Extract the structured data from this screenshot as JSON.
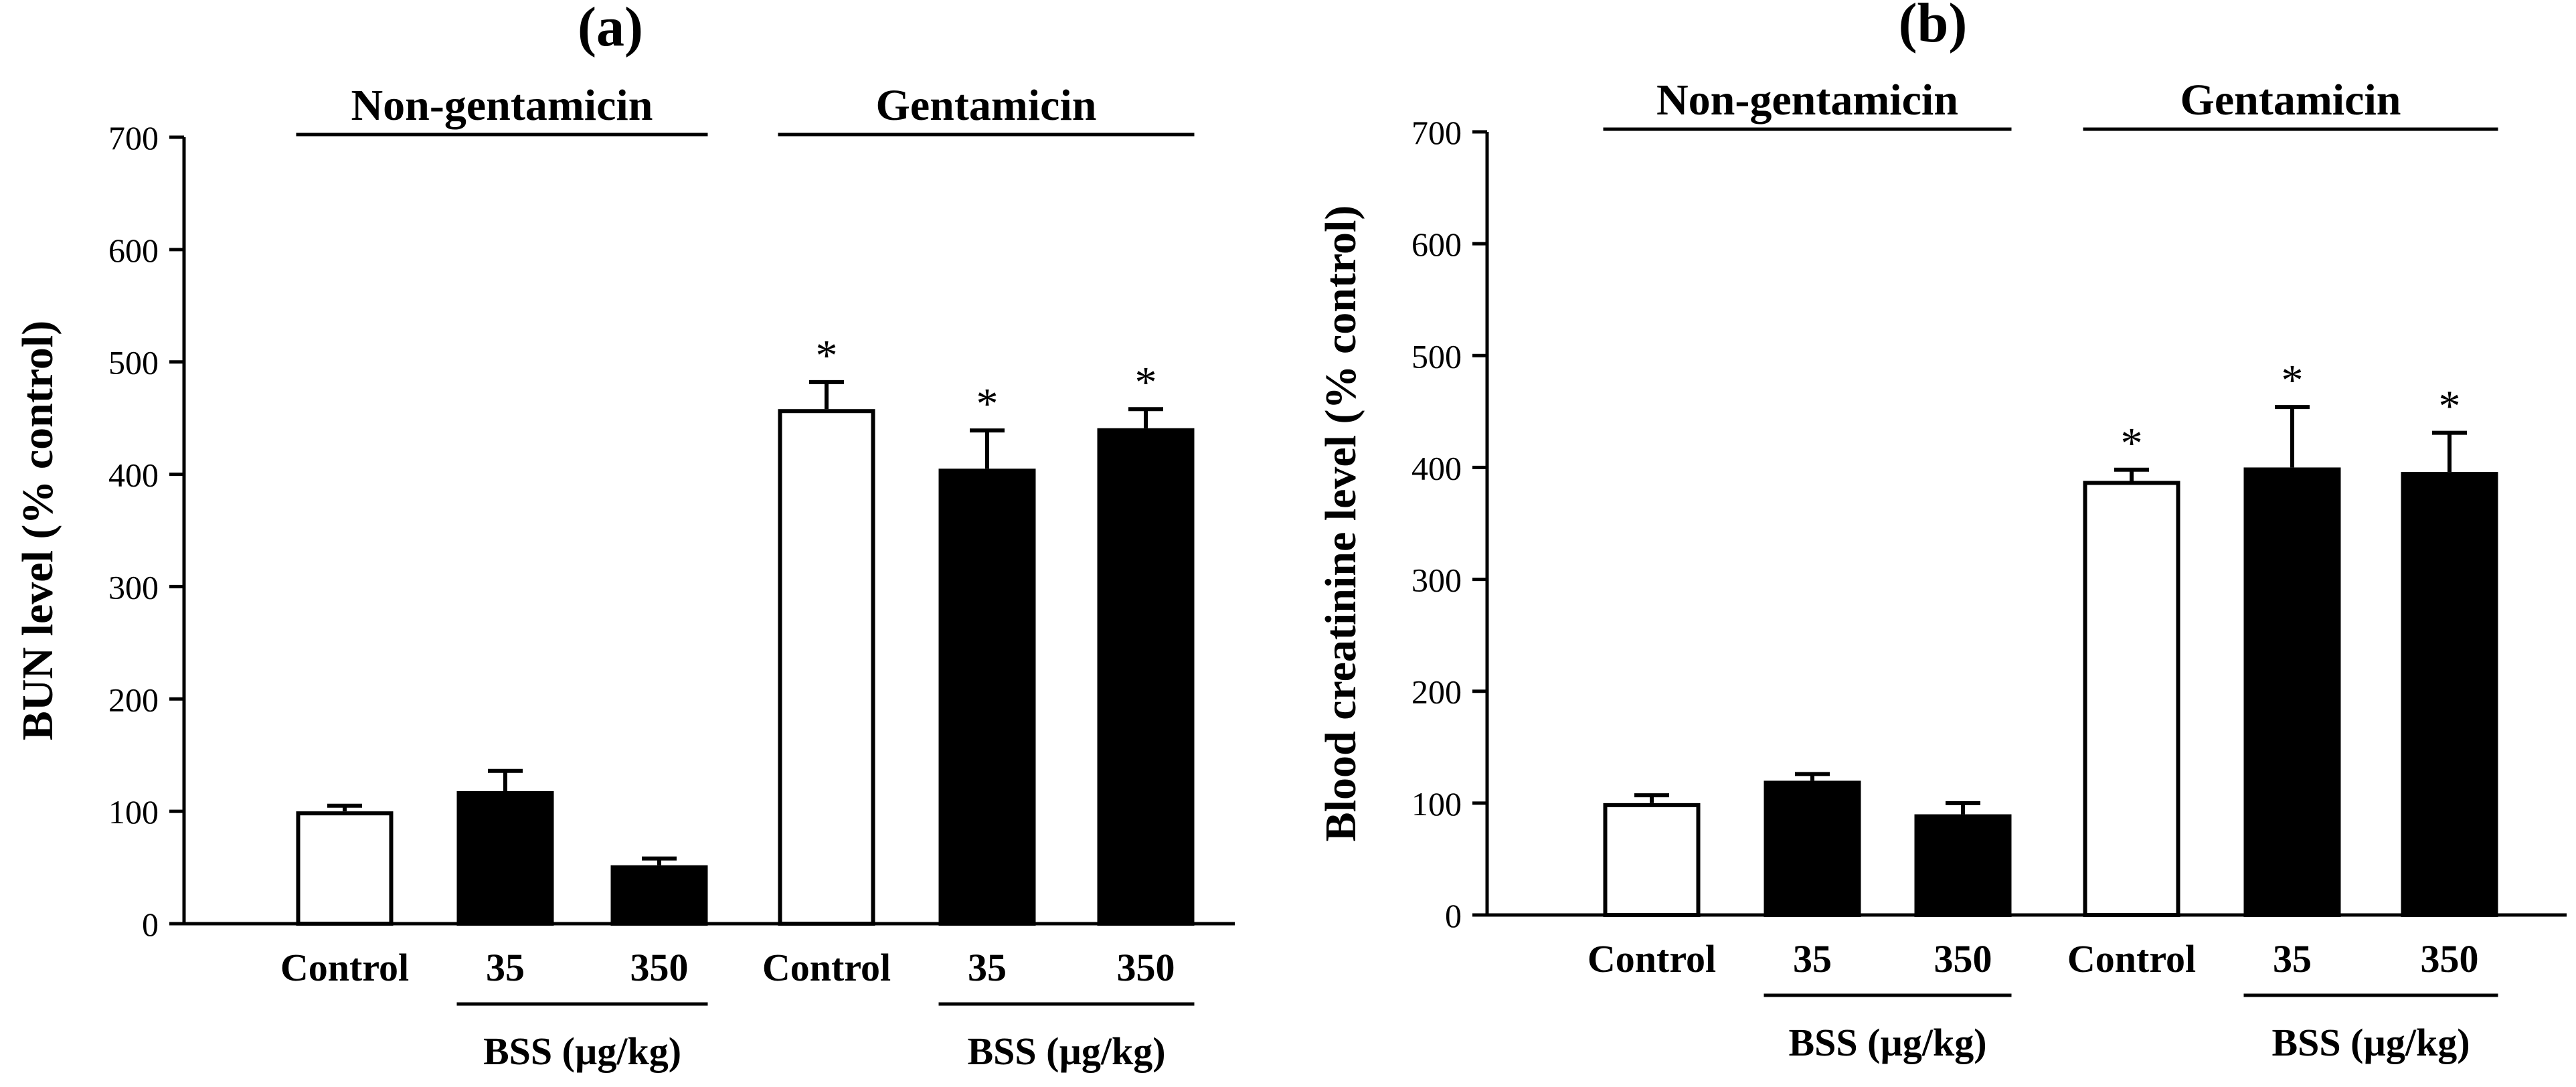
{
  "figure": {
    "panels": [
      "a",
      "b"
    ]
  },
  "chart_data": [
    {
      "type": "bar",
      "panel_label": "(a)",
      "ylabel": "BUN level (% control)",
      "ylim": [
        0,
        700
      ],
      "yticks": [
        "0",
        "100",
        "200",
        "300",
        "400",
        "500",
        "600",
        "700"
      ],
      "categories": [
        "Control",
        "35",
        "350",
        "Control",
        "35",
        "350"
      ],
      "values": [
        100,
        118,
        52,
        458,
        405,
        441
      ],
      "errors": [
        5,
        18,
        6,
        24,
        34,
        17
      ],
      "fills": [
        "open",
        "filled",
        "filled",
        "open",
        "filled",
        "filled"
      ],
      "significant": [
        false,
        false,
        false,
        true,
        true,
        true
      ],
      "significance_marker": "*",
      "groups": [
        {
          "label": "Non-gentamicin",
          "bars": [
            0,
            1,
            2
          ]
        },
        {
          "label": "Gentamicin",
          "bars": [
            3,
            4,
            5
          ]
        }
      ],
      "subgroups": [
        {
          "label": "BSS (µg/kg)",
          "bars": [
            1,
            2
          ]
        },
        {
          "label": "BSS (µg/kg)",
          "bars": [
            4,
            5
          ]
        }
      ]
    },
    {
      "type": "bar",
      "panel_label": "(b)",
      "ylabel": "Blood creatinine level (% control)",
      "ylim": [
        0,
        700
      ],
      "yticks": [
        "0",
        "100",
        "200",
        "300",
        "400",
        "500",
        "600",
        "700"
      ],
      "categories": [
        "Control",
        "35",
        "350",
        "Control",
        "35",
        "350"
      ],
      "values": [
        100,
        120,
        90,
        388,
        400,
        396
      ],
      "errors": [
        7,
        6,
        10,
        10,
        54,
        35
      ],
      "fills": [
        "open",
        "filled",
        "filled",
        "open",
        "filled",
        "filled"
      ],
      "significant": [
        false,
        false,
        false,
        true,
        true,
        true
      ],
      "significance_marker": "*",
      "groups": [
        {
          "label": "Non-gentamicin",
          "bars": [
            0,
            1,
            2
          ]
        },
        {
          "label": "Gentamicin",
          "bars": [
            3,
            4,
            5
          ]
        }
      ],
      "subgroups": [
        {
          "label": "BSS (µg/kg)",
          "bars": [
            1,
            2
          ]
        },
        {
          "label": "BSS (µg/kg)",
          "bars": [
            4,
            5
          ]
        }
      ]
    }
  ]
}
